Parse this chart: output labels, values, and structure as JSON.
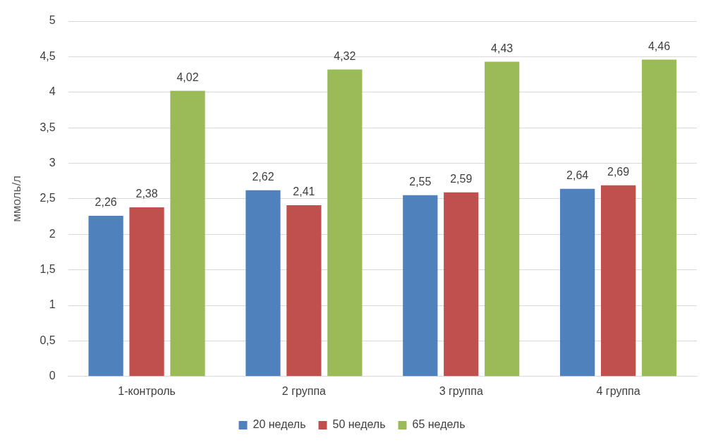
{
  "chart_data": {
    "type": "bar",
    "ylabel": "ммоль/л",
    "categories": [
      "1-контроль",
      "2 группа",
      "3 группа",
      "4 группа"
    ],
    "series": [
      {
        "name": "20 недель",
        "color": "#4f81bd",
        "values": [
          2.26,
          2.62,
          2.55,
          2.64
        ],
        "value_labels": [
          "2,26",
          "2,62",
          "2,55",
          "2,64"
        ]
      },
      {
        "name": "50 недель",
        "color": "#c0504d",
        "values": [
          2.38,
          2.41,
          2.59,
          2.69
        ],
        "value_labels": [
          "2,38",
          "2,41",
          "2,59",
          "2,69"
        ]
      },
      {
        "name": "65 недель",
        "color": "#9bbb59",
        "values": [
          4.02,
          4.32,
          4.43,
          4.46
        ],
        "value_labels": [
          "4,02",
          "4,32",
          "4,43",
          "4,46"
        ]
      }
    ],
    "ylim": [
      0,
      5
    ],
    "yticks": [
      0,
      {
        "value": 0.5,
        "label": "0,5"
      },
      1,
      {
        "value": 1.5,
        "label": "1,5"
      },
      2,
      {
        "value": 2.5,
        "label": "2,5"
      },
      3,
      {
        "value": 3.5,
        "label": "3,5"
      },
      4,
      {
        "value": 4.5,
        "label": "4,5"
      },
      5
    ],
    "grid": "y",
    "legend": "bottom"
  }
}
